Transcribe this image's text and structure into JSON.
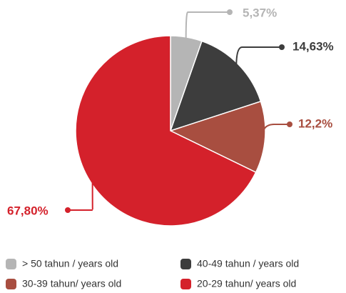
{
  "chart_data": {
    "type": "pie",
    "categories": [
      "> 50 tahun / years old",
      "40-49 tahun / years old",
      "30-39 tahun/ years old",
      "20-29 tahun/ years old"
    ],
    "values": [
      5.37,
      14.63,
      12.2,
      67.8
    ],
    "value_labels": [
      "5,37%",
      "14,63%",
      "12,2%",
      "67,80%"
    ],
    "colors": [
      "#b5b5b5",
      "#3d3d3d",
      "#a84e40",
      "#d4212b"
    ]
  }
}
